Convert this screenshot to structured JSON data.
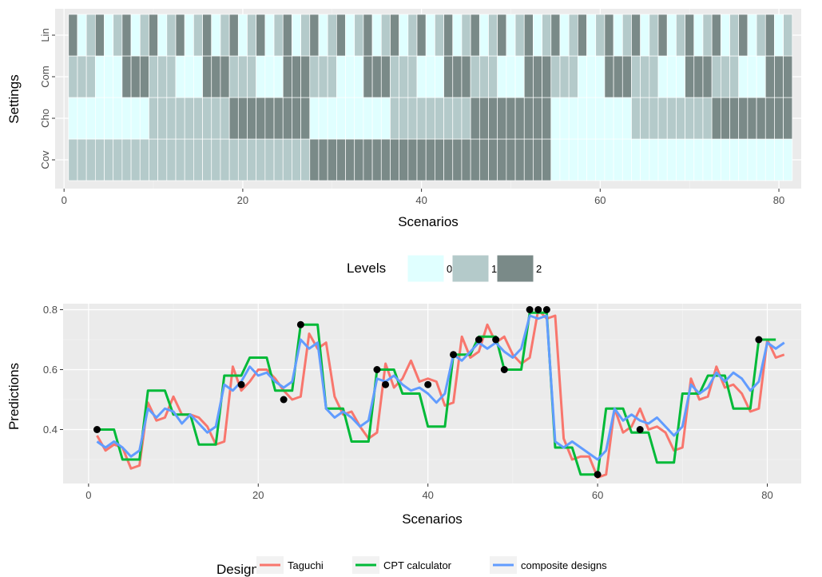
{
  "chart_data": [
    {
      "type": "heatmap",
      "xlabel": "Scenarios",
      "ylabel": "Settings",
      "xlim": [
        -1,
        82.5
      ],
      "x_ticks": [
        0,
        20,
        40,
        60,
        80
      ],
      "rows": [
        "Cov",
        "Cho",
        "Com",
        "Lin"
      ],
      "legend": {
        "title": "Levels",
        "position": "bottom",
        "levels": [
          "0",
          "1",
          "2"
        ],
        "colors": [
          "#e0ffff",
          "#b4caca",
          "#7a8a88"
        ]
      },
      "grid": true,
      "values": {
        "Lin": [
          2,
          0,
          1,
          2,
          0,
          1,
          2,
          0,
          1,
          2,
          0,
          1,
          2,
          0,
          1,
          2,
          0,
          1,
          2,
          0,
          1,
          2,
          0,
          1,
          2,
          0,
          1,
          2,
          0,
          1,
          2,
          0,
          1,
          2,
          0,
          1,
          2,
          0,
          1,
          2,
          0,
          1,
          2,
          0,
          1,
          2,
          0,
          1,
          2,
          0,
          1,
          2,
          0,
          1,
          2,
          0,
          1,
          2,
          0,
          1,
          2,
          0,
          1,
          2,
          0,
          1,
          2,
          0,
          1,
          2,
          0,
          1,
          2,
          0,
          1,
          2,
          0,
          1,
          2,
          0,
          1
        ],
        "Com": [
          1,
          1,
          1,
          0,
          0,
          0,
          2,
          2,
          2,
          1,
          1,
          1,
          0,
          0,
          0,
          2,
          2,
          2,
          1,
          1,
          1,
          0,
          0,
          0,
          2,
          2,
          2,
          1,
          1,
          1,
          0,
          0,
          0,
          2,
          2,
          2,
          1,
          1,
          1,
          0,
          0,
          0,
          2,
          2,
          2,
          1,
          1,
          1,
          0,
          0,
          0,
          2,
          2,
          2,
          1,
          1,
          1,
          0,
          0,
          0,
          2,
          2,
          2,
          1,
          1,
          1,
          0,
          0,
          0,
          2,
          2,
          2,
          1,
          1,
          1,
          0,
          0,
          0,
          2,
          2,
          2
        ],
        "Cho": [
          0,
          0,
          0,
          0,
          0,
          0,
          0,
          0,
          0,
          1,
          1,
          1,
          1,
          1,
          1,
          1,
          1,
          1,
          2,
          2,
          2,
          2,
          2,
          2,
          2,
          2,
          2,
          0,
          0,
          0,
          0,
          0,
          0,
          0,
          0,
          0,
          1,
          1,
          1,
          1,
          1,
          1,
          1,
          1,
          1,
          2,
          2,
          2,
          2,
          2,
          2,
          2,
          2,
          2,
          0,
          0,
          0,
          0,
          0,
          0,
          0,
          0,
          0,
          1,
          1,
          1,
          1,
          1,
          1,
          1,
          1,
          1,
          2,
          2,
          2,
          2,
          2,
          2,
          2,
          2,
          2
        ],
        "Cov": [
          1,
          1,
          1,
          1,
          1,
          1,
          1,
          1,
          1,
          1,
          1,
          1,
          1,
          1,
          1,
          1,
          1,
          1,
          1,
          1,
          1,
          1,
          1,
          1,
          1,
          1,
          1,
          2,
          2,
          2,
          2,
          2,
          2,
          2,
          2,
          2,
          2,
          2,
          2,
          2,
          2,
          2,
          2,
          2,
          2,
          2,
          2,
          2,
          2,
          2,
          2,
          2,
          2,
          2,
          0,
          0,
          0,
          0,
          0,
          0,
          0,
          0,
          0,
          0,
          0,
          0,
          0,
          0,
          0,
          0,
          0,
          0,
          0,
          0,
          0,
          0,
          0,
          0,
          0,
          0,
          0
        ]
      }
    },
    {
      "type": "line",
      "xlabel": "Scenarios",
      "ylabel": "Predictions",
      "xlim": [
        -3,
        84
      ],
      "ylim": [
        0.22,
        0.82
      ],
      "x_ticks": [
        0,
        20,
        40,
        60,
        80
      ],
      "y_ticks": [
        "0.4",
        "0.6",
        "0.8"
      ],
      "grid": true,
      "legend": {
        "title": "Design",
        "position": "bottom"
      },
      "series": [
        {
          "name": "Taguchi",
          "color": "#f8766d",
          "values": [
            0.38,
            0.33,
            0.35,
            0.34,
            0.27,
            0.28,
            0.49,
            0.43,
            0.44,
            0.51,
            0.45,
            0.45,
            0.44,
            0.41,
            0.35,
            0.36,
            0.61,
            0.53,
            0.56,
            0.6,
            0.6,
            0.57,
            0.53,
            0.5,
            0.51,
            0.72,
            0.67,
            0.69,
            0.51,
            0.45,
            0.46,
            0.41,
            0.37,
            0.39,
            0.62,
            0.54,
            0.57,
            0.63,
            0.56,
            0.57,
            0.56,
            0.48,
            0.49,
            0.71,
            0.64,
            0.66,
            0.75,
            0.69,
            0.71,
            0.65,
            0.62,
            0.64,
            0.8,
            0.77,
            0.78,
            0.37,
            0.3,
            0.31,
            0.31,
            0.24,
            0.25,
            0.47,
            0.39,
            0.41,
            0.47,
            0.4,
            0.41,
            0.39,
            0.33,
            0.34,
            0.57,
            0.5,
            0.51,
            0.61,
            0.54,
            0.55,
            0.52,
            0.46,
            0.47,
            0.7,
            0.64,
            0.65
          ]
        },
        {
          "name": "CPT calculator",
          "color": "#00ba38",
          "values": [
            0.4,
            0.4,
            0.4,
            0.3,
            0.3,
            0.3,
            0.53,
            0.53,
            0.53,
            0.45,
            0.45,
            0.45,
            0.35,
            0.35,
            0.35,
            0.58,
            0.58,
            0.58,
            0.64,
            0.64,
            0.64,
            0.53,
            0.53,
            0.53,
            0.75,
            0.75,
            0.75,
            0.47,
            0.47,
            0.47,
            0.36,
            0.36,
            0.36,
            0.6,
            0.6,
            0.6,
            0.52,
            0.52,
            0.52,
            0.41,
            0.41,
            0.41,
            0.65,
            0.65,
            0.65,
            0.71,
            0.71,
            0.71,
            0.6,
            0.6,
            0.6,
            0.79,
            0.79,
            0.79,
            0.34,
            0.34,
            0.34,
            0.25,
            0.25,
            0.25,
            0.47,
            0.47,
            0.47,
            0.39,
            0.39,
            0.39,
            0.29,
            0.29,
            0.29,
            0.52,
            0.52,
            0.52,
            0.58,
            0.58,
            0.58,
            0.47,
            0.47,
            0.47,
            0.7,
            0.7,
            0.7
          ]
        },
        {
          "name": "composite designs",
          "color": "#619cff",
          "values": [
            0.36,
            0.34,
            0.36,
            0.34,
            0.31,
            0.33,
            0.47,
            0.44,
            0.47,
            0.46,
            0.42,
            0.45,
            0.42,
            0.39,
            0.41,
            0.55,
            0.53,
            0.56,
            0.61,
            0.58,
            0.59,
            0.56,
            0.54,
            0.56,
            0.7,
            0.67,
            0.69,
            0.47,
            0.44,
            0.46,
            0.44,
            0.41,
            0.43,
            0.57,
            0.56,
            0.58,
            0.55,
            0.53,
            0.54,
            0.52,
            0.49,
            0.52,
            0.65,
            0.63,
            0.66,
            0.69,
            0.67,
            0.69,
            0.66,
            0.64,
            0.67,
            0.78,
            0.77,
            0.78,
            0.36,
            0.34,
            0.36,
            0.34,
            0.32,
            0.3,
            0.33,
            0.47,
            0.43,
            0.45,
            0.43,
            0.42,
            0.44,
            0.41,
            0.38,
            0.41,
            0.55,
            0.52,
            0.54,
            0.59,
            0.56,
            0.59,
            0.57,
            0.53,
            0.56,
            0.69,
            0.67,
            0.69
          ]
        }
      ],
      "points": {
        "x": [
          1,
          18,
          23,
          25,
          34,
          35,
          40,
          43,
          46,
          48,
          49,
          52,
          53,
          54,
          60,
          65,
          79
        ],
        "y": [
          0.4,
          0.55,
          0.5,
          0.75,
          0.6,
          0.55,
          0.55,
          0.65,
          0.7,
          0.7,
          0.6,
          0.8,
          0.8,
          0.8,
          0.25,
          0.4,
          0.7
        ]
      }
    }
  ]
}
